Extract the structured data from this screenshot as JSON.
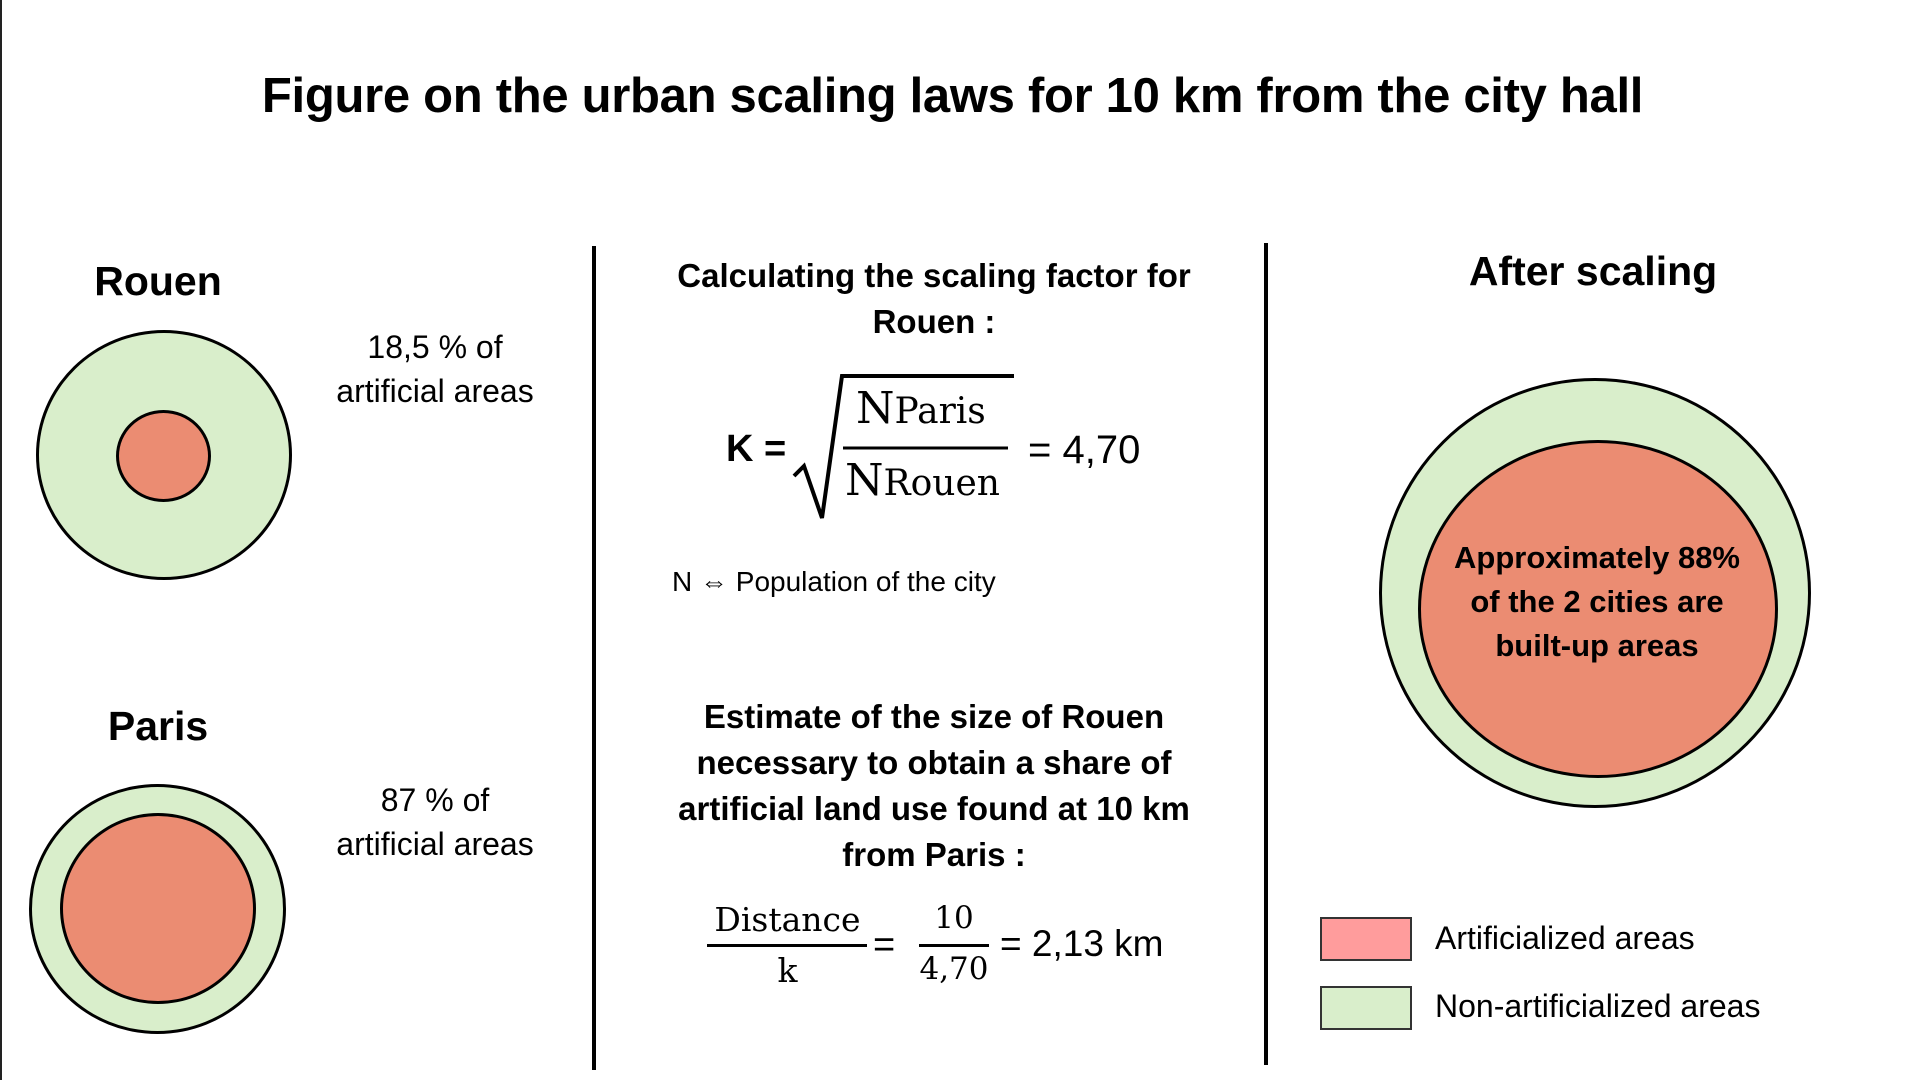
{
  "title": "Figure on the urban scaling laws for 10 km from the city hall",
  "colors": {
    "artificial": "#eb8c72",
    "non_artificial": "#d9eecb",
    "legend_artificial": "#ff9c9c",
    "outline": "#000000"
  },
  "left": {
    "rouen": {
      "name": "Rouen",
      "share_line1": "18,5 % of",
      "share_line2": "artificial areas",
      "artificial_share_pct": 18.5
    },
    "paris": {
      "name": "Paris",
      "share_line1": "87 % of",
      "share_line2": "artificial areas",
      "artificial_share_pct": 87
    }
  },
  "middle": {
    "calc_heading_line1": "Calculating the scaling factor for",
    "calc_heading_line2": "Rouen :",
    "k_label": "K =",
    "numerator_base": "N",
    "numerator_sub": "Paris",
    "denominator_base": "N",
    "denominator_sub": "Rouen",
    "k_result": "= 4,70",
    "note": "N ⇔ Population of the city",
    "estimate_line1": "Estimate of the size of Rouen",
    "estimate_line2": "necessary to obtain a share of",
    "estimate_line3": "artificial land use found at 10 km",
    "estimate_line4": "from Paris :",
    "frac1_num": "Distance",
    "frac1_den": "k",
    "eq": "=",
    "frac2_num": "10",
    "frac2_den": "4,70",
    "distance_result": "= 2,13 km"
  },
  "right": {
    "heading": "After scaling",
    "inner_line1": "Approximately 88%",
    "inner_line2": "of the 2 cities are",
    "inner_line3": "built-up areas"
  },
  "legend": {
    "artificial": "Artificialized areas",
    "non_artificial": "Non-artificialized areas"
  }
}
